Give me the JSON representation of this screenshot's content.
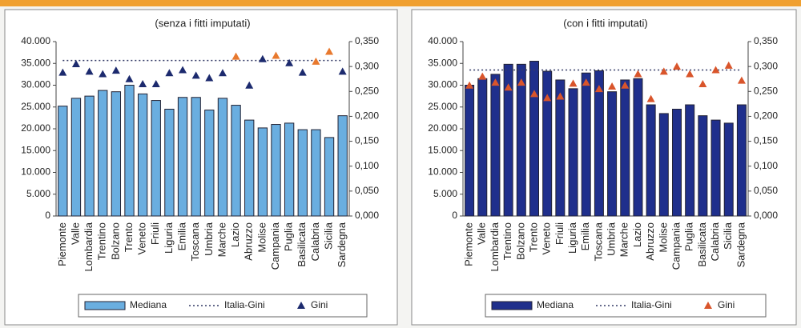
{
  "chart_data": [
    {
      "type": "bar_line",
      "subtitle": "(senza i fitti imputati)",
      "categories": [
        "Piemonte",
        "Valle",
        "Lombardia",
        "Trentino",
        "Bolzano",
        "Trento",
        "Veneto",
        "Friuli",
        "Liguria",
        "Emilia",
        "Toscana",
        "Umbria",
        "Marche",
        "Lazio",
        "Abruzzo",
        "Molise",
        "Campania",
        "Puglia",
        "Basilicata",
        "Calabria",
        "Sicilia",
        "Sardegna"
      ],
      "series": [
        {
          "name": "Mediana",
          "kind": "bar",
          "color": "#6aaee0",
          "values": [
            25200,
            27000,
            27500,
            28800,
            28500,
            30000,
            28000,
            26500,
            24500,
            27200,
            27200,
            24300,
            27000,
            25400,
            22000,
            20200,
            21000,
            21300,
            19800,
            19800,
            18000,
            23000
          ]
        },
        {
          "name": "Italia-Gini",
          "kind": "dotted",
          "color": "#333a66",
          "axis": "y2",
          "values": [
            0.312,
            0.312,
            0.312,
            0.312,
            0.312,
            0.312,
            0.312,
            0.312,
            0.312,
            0.312,
            0.312,
            0.312,
            0.312,
            0.312,
            0.312,
            0.312,
            0.312,
            0.312,
            0.312,
            0.312,
            0.312,
            0.312
          ]
        },
        {
          "name": "Gini",
          "kind": "marker",
          "color": "#1c2a6e",
          "axis": "y2",
          "marker_colors": [
            "#1c2a6e",
            "#1c2a6e",
            "#1c2a6e",
            "#1c2a6e",
            "#1c2a6e",
            "#1c2a6e",
            "#1c2a6e",
            "#1c2a6e",
            "#1c2a6e",
            "#1c2a6e",
            "#1c2a6e",
            "#1c2a6e",
            "#1c2a6e",
            "#e8792e",
            "#1c2a6e",
            "#1c2a6e",
            "#e8792e",
            "#1c2a6e",
            "#1c2a6e",
            "#e8792e",
            "#e8792e",
            "#1c2a6e"
          ],
          "values": [
            0.288,
            0.305,
            0.29,
            0.285,
            0.292,
            0.275,
            0.265,
            0.265,
            0.287,
            0.293,
            0.282,
            0.277,
            0.287,
            0.32,
            0.262,
            0.315,
            0.322,
            0.307,
            0.288,
            0.31,
            0.33,
            0.29
          ]
        }
      ],
      "ylim": [
        0,
        40000
      ],
      "yticks": [
        0,
        {
          "value": 5000,
          "label": "5.000"
        },
        {
          "value": 10000,
          "label": "10.000"
        },
        {
          "value": 15000,
          "label": "15.000"
        },
        {
          "value": 20000,
          "label": "20.000"
        },
        {
          "value": 25000,
          "label": "25.000"
        },
        {
          "value": 30000,
          "label": "30.000"
        },
        {
          "value": 35000,
          "label": "35.000"
        },
        {
          "value": 40000,
          "label": "40.000"
        }
      ],
      "y2lim": [
        0,
        0.35
      ],
      "y2ticks": [
        {
          "value": 0,
          "label": "0,000"
        },
        {
          "value": 0.05,
          "label": "0,050"
        },
        {
          "value": 0.1,
          "label": "0,100"
        },
        {
          "value": 0.15,
          "label": "0,150"
        },
        {
          "value": 0.2,
          "label": "0,200"
        },
        {
          "value": 0.25,
          "label": "0,250"
        },
        {
          "value": 0.3,
          "label": "0,300"
        },
        {
          "value": 0.35,
          "label": "0,350"
        }
      ]
    },
    {
      "type": "bar_line",
      "subtitle": "(con i fitti imputati)",
      "categories": [
        "Piemonte",
        "Valle",
        "Lombardia",
        "Trentino",
        "Bolzano",
        "Trento",
        "Veneto",
        "Friuli",
        "Liguria",
        "Emilia",
        "Toscana",
        "Umbria",
        "Marche",
        "Lazio",
        "Abruzzo",
        "Molise",
        "Campania",
        "Puglia",
        "Basilicata",
        "Calabria",
        "Sicilia",
        "Sardegna"
      ],
      "series": [
        {
          "name": "Mediana",
          "kind": "bar",
          "color": "#1f2f8c",
          "values": [
            30000,
            31500,
            32500,
            34800,
            34800,
            35500,
            33200,
            31200,
            29200,
            32800,
            33300,
            28500,
            31200,
            31500,
            25500,
            23500,
            24500,
            25500,
            23000,
            22000,
            21300,
            25500
          ]
        },
        {
          "name": "Italia-Gini",
          "kind": "dotted",
          "color": "#333a66",
          "axis": "y2",
          "values": [
            0.293,
            0.293,
            0.293,
            0.293,
            0.293,
            0.293,
            0.293,
            0.293,
            0.293,
            0.293,
            0.293,
            0.293,
            0.293,
            0.293,
            0.293,
            0.293,
            0.293,
            0.293,
            0.293,
            0.293,
            0.293,
            0.293
          ]
        },
        {
          "name": "Gini",
          "kind": "marker",
          "color": "#d9552b",
          "axis": "y2",
          "values": [
            0.262,
            0.28,
            0.268,
            0.258,
            0.268,
            0.245,
            0.237,
            0.24,
            0.266,
            0.268,
            0.255,
            0.26,
            0.262,
            0.285,
            0.235,
            0.29,
            0.3,
            0.285,
            0.265,
            0.293,
            0.302,
            0.272
          ]
        }
      ],
      "ylim": [
        0,
        40000
      ],
      "yticks": [
        0,
        {
          "value": 5000,
          "label": "5.000"
        },
        {
          "value": 10000,
          "label": "10.000"
        },
        {
          "value": 15000,
          "label": "15.000"
        },
        {
          "value": 20000,
          "label": "20.000"
        },
        {
          "value": 25000,
          "label": "25.000"
        },
        {
          "value": 30000,
          "label": "30.000"
        },
        {
          "value": 35000,
          "label": "35.000"
        },
        {
          "value": 40000,
          "label": "40.000"
        }
      ],
      "y2lim": [
        0,
        0.35
      ],
      "y2ticks": [
        {
          "value": 0,
          "label": "0,000"
        },
        {
          "value": 0.05,
          "label": "0,050"
        },
        {
          "value": 0.1,
          "label": "0,100"
        },
        {
          "value": 0.15,
          "label": "0,150"
        },
        {
          "value": 0.2,
          "label": "0,200"
        },
        {
          "value": 0.25,
          "label": "0,250"
        },
        {
          "value": 0.3,
          "label": "0,300"
        },
        {
          "value": 0.35,
          "label": "0,350"
        }
      ]
    }
  ]
}
